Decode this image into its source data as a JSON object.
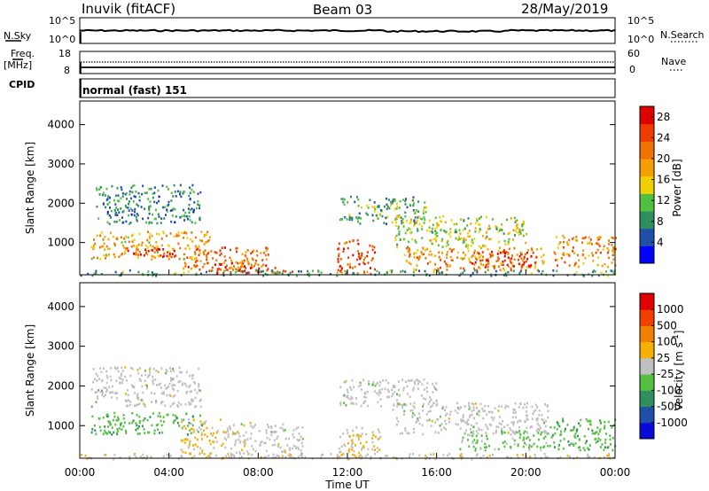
{
  "header": {
    "station": "Inuvik (fitACF)",
    "beam": "Beam 03",
    "date": "28/May/2019"
  },
  "left_labels": {
    "nsky": "N.Sky",
    "freq": "Freq.",
    "freq_unit": "[MHz]",
    "cpid": "CPID"
  },
  "right_labels": {
    "nsearch": "N.Search",
    "nave": "Nave"
  },
  "cpid_text": "normal (fast) 151",
  "noise_axis": {
    "left_top": "10^5",
    "left_bottom": "10^0",
    "right_top": "10^5",
    "right_bottom": "10^0"
  },
  "freq_axis": {
    "left_top": "18",
    "left_bottom": "8",
    "right_top": "60",
    "right_bottom": "0"
  },
  "colors": {
    "power": [
      "#0000ff",
      "#1f4fa8",
      "#2f8f5f",
      "#50c040",
      "#f0d000",
      "#f5a000",
      "#f07000",
      "#f03c00",
      "#e00000"
    ],
    "velocity": [
      "#0a0ad8",
      "#1f4fa8",
      "#2f8f5f",
      "#55c040",
      "#c0c0c0",
      "#f5b000",
      "#f08000",
      "#f04000",
      "#e00000"
    ]
  },
  "chart_data": [
    {
      "type": "heatmap",
      "title": "",
      "xlabel": "Time UT",
      "ylabel": "Slant Range [km]",
      "x_ticks": [
        "00:00",
        "04:00",
        "08:00",
        "12:00",
        "16:00",
        "20:00",
        "00:00"
      ],
      "y_ticks": [
        "1000",
        "2000",
        "3000",
        "4000"
      ],
      "ylim": [
        180,
        4600
      ],
      "colorbar": {
        "label": "Power [dB]",
        "ticks": [
          "4",
          "8",
          "12",
          "16",
          "20",
          "24",
          "28"
        ],
        "range": [
          0,
          30
        ]
      },
      "regions": [
        {
          "t0": 0.5,
          "t1": 5.8,
          "r0": 600,
          "r1": 1300,
          "v": 18
        },
        {
          "t0": 2.0,
          "t1": 4.5,
          "r0": 650,
          "r1": 900,
          "v": 27
        },
        {
          "t0": 4.5,
          "t1": 8.5,
          "r0": 300,
          "r1": 900,
          "v": 22
        },
        {
          "t0": 6.0,
          "t1": 9.5,
          "r0": 220,
          "r1": 500,
          "v": 26
        },
        {
          "t0": 0.7,
          "t1": 5.4,
          "r0": 1500,
          "r1": 2500,
          "v": 8
        },
        {
          "t0": 11.6,
          "t1": 15.5,
          "r0": 1500,
          "r1": 2200,
          "v": 10
        },
        {
          "t0": 14.0,
          "t1": 20.0,
          "r0": 900,
          "r1": 1700,
          "v": 14
        },
        {
          "t0": 11.5,
          "t1": 13.2,
          "r0": 220,
          "r1": 1100,
          "v": 24
        },
        {
          "t0": 14.5,
          "t1": 20.8,
          "r0": 300,
          "r1": 900,
          "v": 20
        },
        {
          "t0": 17.5,
          "t1": 20.5,
          "r0": 400,
          "r1": 800,
          "v": 27
        },
        {
          "t0": 21.2,
          "t1": 24.0,
          "r0": 400,
          "r1": 1200,
          "v": 20
        },
        {
          "t0": 0.0,
          "t1": 24.0,
          "r0": 180,
          "r1": 320,
          "v": 9
        }
      ]
    },
    {
      "type": "heatmap",
      "title": "",
      "xlabel": "Time UT",
      "ylabel": "Slant Range [km]",
      "x_ticks": [
        "00:00",
        "04:00",
        "08:00",
        "12:00",
        "16:00",
        "20:00",
        "00:00"
      ],
      "y_ticks": [
        "1000",
        "2000",
        "3000",
        "4000"
      ],
      "ylim": [
        180,
        4600
      ],
      "colorbar": {
        "label": "Velocity [m s^-1]",
        "ticks": [
          "1000",
          "500",
          "100",
          "25",
          "-25",
          "-100",
          "-500",
          "-1000"
        ],
        "range": [
          -1200,
          1200
        ]
      },
      "regions": [
        {
          "t0": 0.5,
          "t1": 5.5,
          "r0": 800,
          "r1": 1350,
          "v": -300
        },
        {
          "t0": 0.5,
          "t1": 5.4,
          "r0": 1500,
          "r1": 2500,
          "v": 0
        },
        {
          "t0": 4.5,
          "t1": 6.5,
          "r0": 300,
          "r1": 1200,
          "v": 150
        },
        {
          "t0": 6.5,
          "t1": 10.0,
          "r0": 220,
          "r1": 1100,
          "v": 0
        },
        {
          "t0": 11.5,
          "t1": 13.5,
          "r0": 220,
          "r1": 1000,
          "v": 120
        },
        {
          "t0": 11.6,
          "t1": 16.0,
          "r0": 1500,
          "r1": 2200,
          "v": 0
        },
        {
          "t0": 14.0,
          "t1": 21.0,
          "r0": 800,
          "r1": 1600,
          "v": 0
        },
        {
          "t0": 17.0,
          "t1": 21.0,
          "r0": 400,
          "r1": 900,
          "v": -200
        },
        {
          "t0": 21.0,
          "t1": 24.0,
          "r0": 400,
          "r1": 1200,
          "v": -300
        },
        {
          "t0": 0.0,
          "t1": 24.0,
          "r0": 180,
          "r1": 320,
          "v": 40
        }
      ]
    }
  ]
}
